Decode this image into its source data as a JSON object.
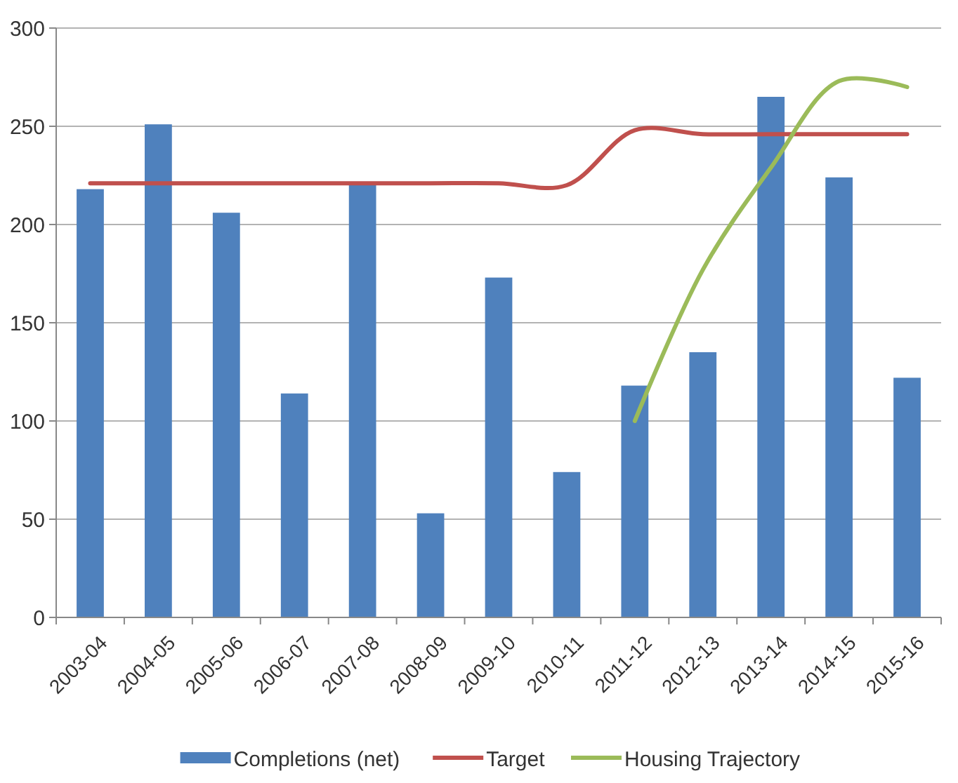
{
  "chart_data": {
    "type": "bar",
    "categories": [
      "2003-04",
      "2004-05",
      "2005-06",
      "2006-07",
      "2007-08",
      "2008-09",
      "2009-10",
      "2010-11",
      "2011-12",
      "2012-13",
      "2013-14",
      "2014-15",
      "2015-16"
    ],
    "series": [
      {
        "name": "Completions (net)",
        "color": "#4f81bd",
        "values": [
          218,
          251,
          206,
          114,
          221,
          53,
          173,
          74,
          118,
          135,
          265,
          224,
          122
        ]
      },
      {
        "name": "Target",
        "type": "line",
        "color": "#c0504d",
        "values": [
          221,
          221,
          221,
          221,
          221,
          221,
          221,
          220,
          248,
          246,
          246,
          246,
          246
        ]
      },
      {
        "name": "Housing Trajectory",
        "type": "line",
        "color": "#9bbb59",
        "values": [
          null,
          null,
          null,
          null,
          null,
          null,
          null,
          null,
          100,
          177,
          229,
          273,
          270
        ]
      }
    ],
    "ylim": [
      0,
      300
    ],
    "yticks": [
      0,
      50,
      100,
      150,
      200,
      250,
      300
    ],
    "grid": "y",
    "legend": "bottom",
    "marker": "none",
    "line_style": "solid"
  }
}
